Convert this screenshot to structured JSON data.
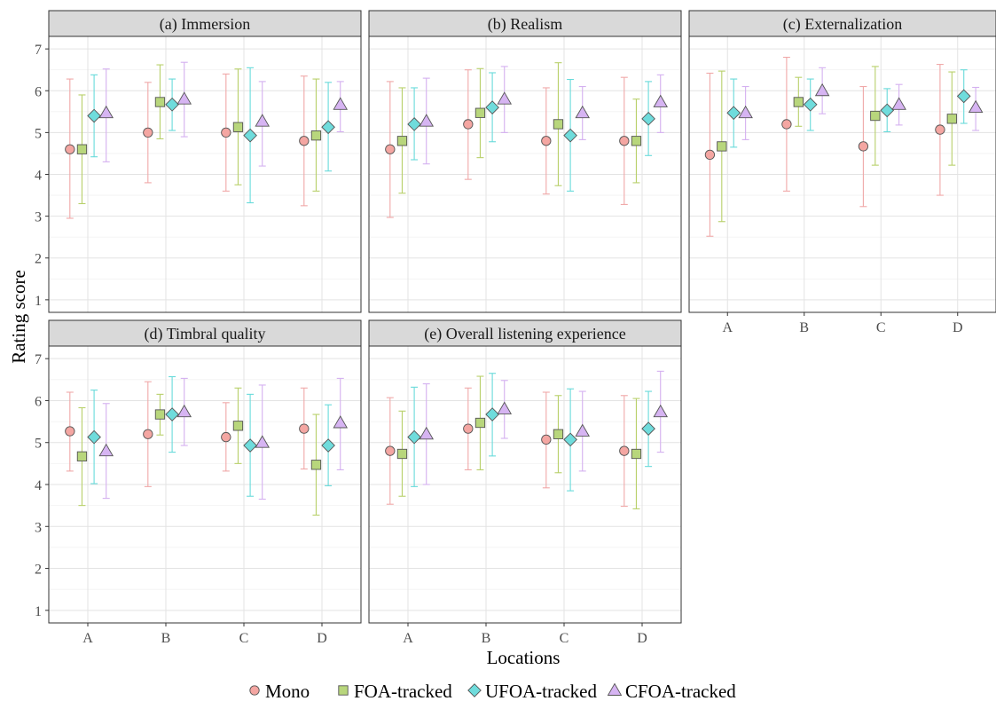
{
  "chart_data": {
    "type": "scatter",
    "subtype": "faceted point-range (mean with error bars)",
    "xlabel": "Locations",
    "ylabel": "Rating score",
    "categories": [
      "A",
      "B",
      "C",
      "D"
    ],
    "ylim": [
      0.7,
      7.3
    ],
    "yticks": [
      1,
      2,
      3,
      4,
      5,
      6,
      7
    ],
    "grid": true,
    "legend_position": "bottom",
    "series": [
      {
        "name": "Mono",
        "marker": "circle",
        "fill": "#f4a6a2",
        "stroke": "#555555",
        "bar_color": "#f0a8a8"
      },
      {
        "name": "FOA-tracked",
        "marker": "square",
        "fill": "#b8d67c",
        "stroke": "#555555",
        "bar_color": "#b8d06a"
      },
      {
        "name": "UFOA-tracked",
        "marker": "diamond",
        "fill": "#6fdcdc",
        "stroke": "#555555",
        "bar_color": "#68dada"
      },
      {
        "name": "CFOA-tracked",
        "marker": "triangle",
        "fill": "#d6b4f2",
        "stroke": "#555555",
        "bar_color": "#d4b0f0"
      }
    ],
    "panels": [
      {
        "title": "(a) Immersion",
        "data": {
          "Mono": [
            {
              "x": "A",
              "y": 4.6,
              "lo": 2.95,
              "hi": 6.28
            },
            {
              "x": "B",
              "y": 5.0,
              "lo": 3.8,
              "hi": 6.2
            },
            {
              "x": "C",
              "y": 5.0,
              "lo": 3.6,
              "hi": 6.4
            },
            {
              "x": "D",
              "y": 4.8,
              "lo": 3.25,
              "hi": 6.35
            }
          ],
          "FOA-tracked": [
            {
              "x": "A",
              "y": 4.6,
              "lo": 3.3,
              "hi": 5.9
            },
            {
              "x": "B",
              "y": 5.73,
              "lo": 4.85,
              "hi": 6.62
            },
            {
              "x": "C",
              "y": 5.13,
              "lo": 3.75,
              "hi": 6.52
            },
            {
              "x": "D",
              "y": 4.93,
              "lo": 3.6,
              "hi": 6.28
            }
          ],
          "UFOA-tracked": [
            {
              "x": "A",
              "y": 5.4,
              "lo": 4.42,
              "hi": 6.38
            },
            {
              "x": "B",
              "y": 5.67,
              "lo": 5.05,
              "hi": 6.28
            },
            {
              "x": "C",
              "y": 4.93,
              "lo": 3.32,
              "hi": 6.55
            },
            {
              "x": "D",
              "y": 5.13,
              "lo": 4.08,
              "hi": 6.2
            }
          ],
          "CFOA-tracked": [
            {
              "x": "A",
              "y": 5.47,
              "lo": 4.3,
              "hi": 6.52
            },
            {
              "x": "B",
              "y": 5.8,
              "lo": 4.9,
              "hi": 6.68
            },
            {
              "x": "C",
              "y": 5.27,
              "lo": 4.2,
              "hi": 6.22
            },
            {
              "x": "D",
              "y": 5.67,
              "lo": 5.02,
              "hi": 6.22
            }
          ]
        }
      },
      {
        "title": "(b) Realism",
        "data": {
          "Mono": [
            {
              "x": "A",
              "y": 4.6,
              "lo": 2.97,
              "hi": 6.22
            },
            {
              "x": "B",
              "y": 5.2,
              "lo": 3.88,
              "hi": 6.5
            },
            {
              "x": "C",
              "y": 4.8,
              "lo": 3.53,
              "hi": 6.07
            },
            {
              "x": "D",
              "y": 4.8,
              "lo": 3.28,
              "hi": 6.32
            }
          ],
          "FOA-tracked": [
            {
              "x": "A",
              "y": 4.8,
              "lo": 3.55,
              "hi": 6.07
            },
            {
              "x": "B",
              "y": 5.47,
              "lo": 4.4,
              "hi": 6.53
            },
            {
              "x": "C",
              "y": 5.2,
              "lo": 3.73,
              "hi": 6.67
            },
            {
              "x": "D",
              "y": 4.8,
              "lo": 3.8,
              "hi": 5.8
            }
          ],
          "UFOA-tracked": [
            {
              "x": "A",
              "y": 5.2,
              "lo": 4.35,
              "hi": 6.07
            },
            {
              "x": "B",
              "y": 5.6,
              "lo": 4.78,
              "hi": 6.43
            },
            {
              "x": "C",
              "y": 4.93,
              "lo": 3.6,
              "hi": 6.27
            },
            {
              "x": "D",
              "y": 5.33,
              "lo": 4.45,
              "hi": 6.22
            }
          ],
          "CFOA-tracked": [
            {
              "x": "A",
              "y": 5.27,
              "lo": 4.25,
              "hi": 6.3
            },
            {
              "x": "B",
              "y": 5.8,
              "lo": 5.0,
              "hi": 6.58
            },
            {
              "x": "C",
              "y": 5.47,
              "lo": 4.83,
              "hi": 6.1
            },
            {
              "x": "D",
              "y": 5.73,
              "lo": 5.0,
              "hi": 6.38
            }
          ]
        }
      },
      {
        "title": "(c) Externalization",
        "data": {
          "Mono": [
            {
              "x": "A",
              "y": 4.47,
              "lo": 2.52,
              "hi": 6.42
            },
            {
              "x": "B",
              "y": 5.2,
              "lo": 3.6,
              "hi": 6.8
            },
            {
              "x": "C",
              "y": 4.67,
              "lo": 3.23,
              "hi": 6.1
            },
            {
              "x": "D",
              "y": 5.07,
              "lo": 3.5,
              "hi": 6.63
            }
          ],
          "FOA-tracked": [
            {
              "x": "A",
              "y": 4.67,
              "lo": 2.87,
              "hi": 6.47
            },
            {
              "x": "B",
              "y": 5.73,
              "lo": 5.15,
              "hi": 6.32
            },
            {
              "x": "C",
              "y": 5.4,
              "lo": 4.22,
              "hi": 6.58
            },
            {
              "x": "D",
              "y": 5.33,
              "lo": 4.22,
              "hi": 6.45
            }
          ],
          "UFOA-tracked": [
            {
              "x": "A",
              "y": 5.47,
              "lo": 4.65,
              "hi": 6.28
            },
            {
              "x": "B",
              "y": 5.67,
              "lo": 5.05,
              "hi": 6.28
            },
            {
              "x": "C",
              "y": 5.53,
              "lo": 5.02,
              "hi": 6.05
            },
            {
              "x": "D",
              "y": 5.87,
              "lo": 5.22,
              "hi": 6.5
            }
          ],
          "CFOA-tracked": [
            {
              "x": "A",
              "y": 5.47,
              "lo": 4.83,
              "hi": 6.1
            },
            {
              "x": "B",
              "y": 6.0,
              "lo": 5.45,
              "hi": 6.55
            },
            {
              "x": "C",
              "y": 5.67,
              "lo": 5.18,
              "hi": 6.15
            },
            {
              "x": "D",
              "y": 5.6,
              "lo": 5.05,
              "hi": 6.08
            }
          ]
        }
      },
      {
        "title": "(d) Timbral quality",
        "data": {
          "Mono": [
            {
              "x": "A",
              "y": 5.27,
              "lo": 4.32,
              "hi": 6.2
            },
            {
              "x": "B",
              "y": 5.2,
              "lo": 3.95,
              "hi": 6.45
            },
            {
              "x": "C",
              "y": 5.13,
              "lo": 4.32,
              "hi": 5.95
            },
            {
              "x": "D",
              "y": 5.33,
              "lo": 4.37,
              "hi": 6.3
            }
          ],
          "FOA-tracked": [
            {
              "x": "A",
              "y": 4.67,
              "lo": 3.5,
              "hi": 5.83
            },
            {
              "x": "B",
              "y": 5.67,
              "lo": 5.18,
              "hi": 6.15
            },
            {
              "x": "C",
              "y": 5.4,
              "lo": 4.5,
              "hi": 6.3
            },
            {
              "x": "D",
              "y": 4.47,
              "lo": 3.27,
              "hi": 5.67
            }
          ],
          "UFOA-tracked": [
            {
              "x": "A",
              "y": 5.13,
              "lo": 4.02,
              "hi": 6.25
            },
            {
              "x": "B",
              "y": 5.67,
              "lo": 4.77,
              "hi": 6.57
            },
            {
              "x": "C",
              "y": 4.93,
              "lo": 3.72,
              "hi": 6.15
            },
            {
              "x": "D",
              "y": 4.93,
              "lo": 3.97,
              "hi": 5.9
            }
          ],
          "CFOA-tracked": [
            {
              "x": "A",
              "y": 4.8,
              "lo": 3.67,
              "hi": 5.93
            },
            {
              "x": "B",
              "y": 5.73,
              "lo": 4.93,
              "hi": 6.53
            },
            {
              "x": "C",
              "y": 5.0,
              "lo": 3.65,
              "hi": 6.37
            },
            {
              "x": "D",
              "y": 5.47,
              "lo": 4.35,
              "hi": 6.53
            }
          ]
        }
      },
      {
        "title": "(e) Overall listening experience",
        "data": {
          "Mono": [
            {
              "x": "A",
              "y": 4.8,
              "lo": 3.53,
              "hi": 6.07
            },
            {
              "x": "B",
              "y": 5.33,
              "lo": 4.35,
              "hi": 6.3
            },
            {
              "x": "C",
              "y": 5.07,
              "lo": 3.92,
              "hi": 6.2
            },
            {
              "x": "D",
              "y": 4.8,
              "lo": 3.48,
              "hi": 6.12
            }
          ],
          "FOA-tracked": [
            {
              "x": "A",
              "y": 4.73,
              "lo": 3.72,
              "hi": 5.75
            },
            {
              "x": "B",
              "y": 5.47,
              "lo": 4.35,
              "hi": 6.58
            },
            {
              "x": "C",
              "y": 5.2,
              "lo": 4.28,
              "hi": 6.12
            },
            {
              "x": "D",
              "y": 4.73,
              "lo": 3.42,
              "hi": 6.05
            }
          ],
          "UFOA-tracked": [
            {
              "x": "A",
              "y": 5.13,
              "lo": 3.95,
              "hi": 6.32
            },
            {
              "x": "B",
              "y": 5.67,
              "lo": 4.68,
              "hi": 6.65
            },
            {
              "x": "C",
              "y": 5.07,
              "lo": 3.85,
              "hi": 6.28
            },
            {
              "x": "D",
              "y": 5.33,
              "lo": 4.43,
              "hi": 6.22
            }
          ],
          "CFOA-tracked": [
            {
              "x": "A",
              "y": 5.2,
              "lo": 4.0,
              "hi": 6.4
            },
            {
              "x": "B",
              "y": 5.8,
              "lo": 5.1,
              "hi": 6.48
            },
            {
              "x": "C",
              "y": 5.27,
              "lo": 4.32,
              "hi": 6.22
            },
            {
              "x": "D",
              "y": 5.73,
              "lo": 4.77,
              "hi": 6.7
            }
          ]
        }
      }
    ]
  }
}
